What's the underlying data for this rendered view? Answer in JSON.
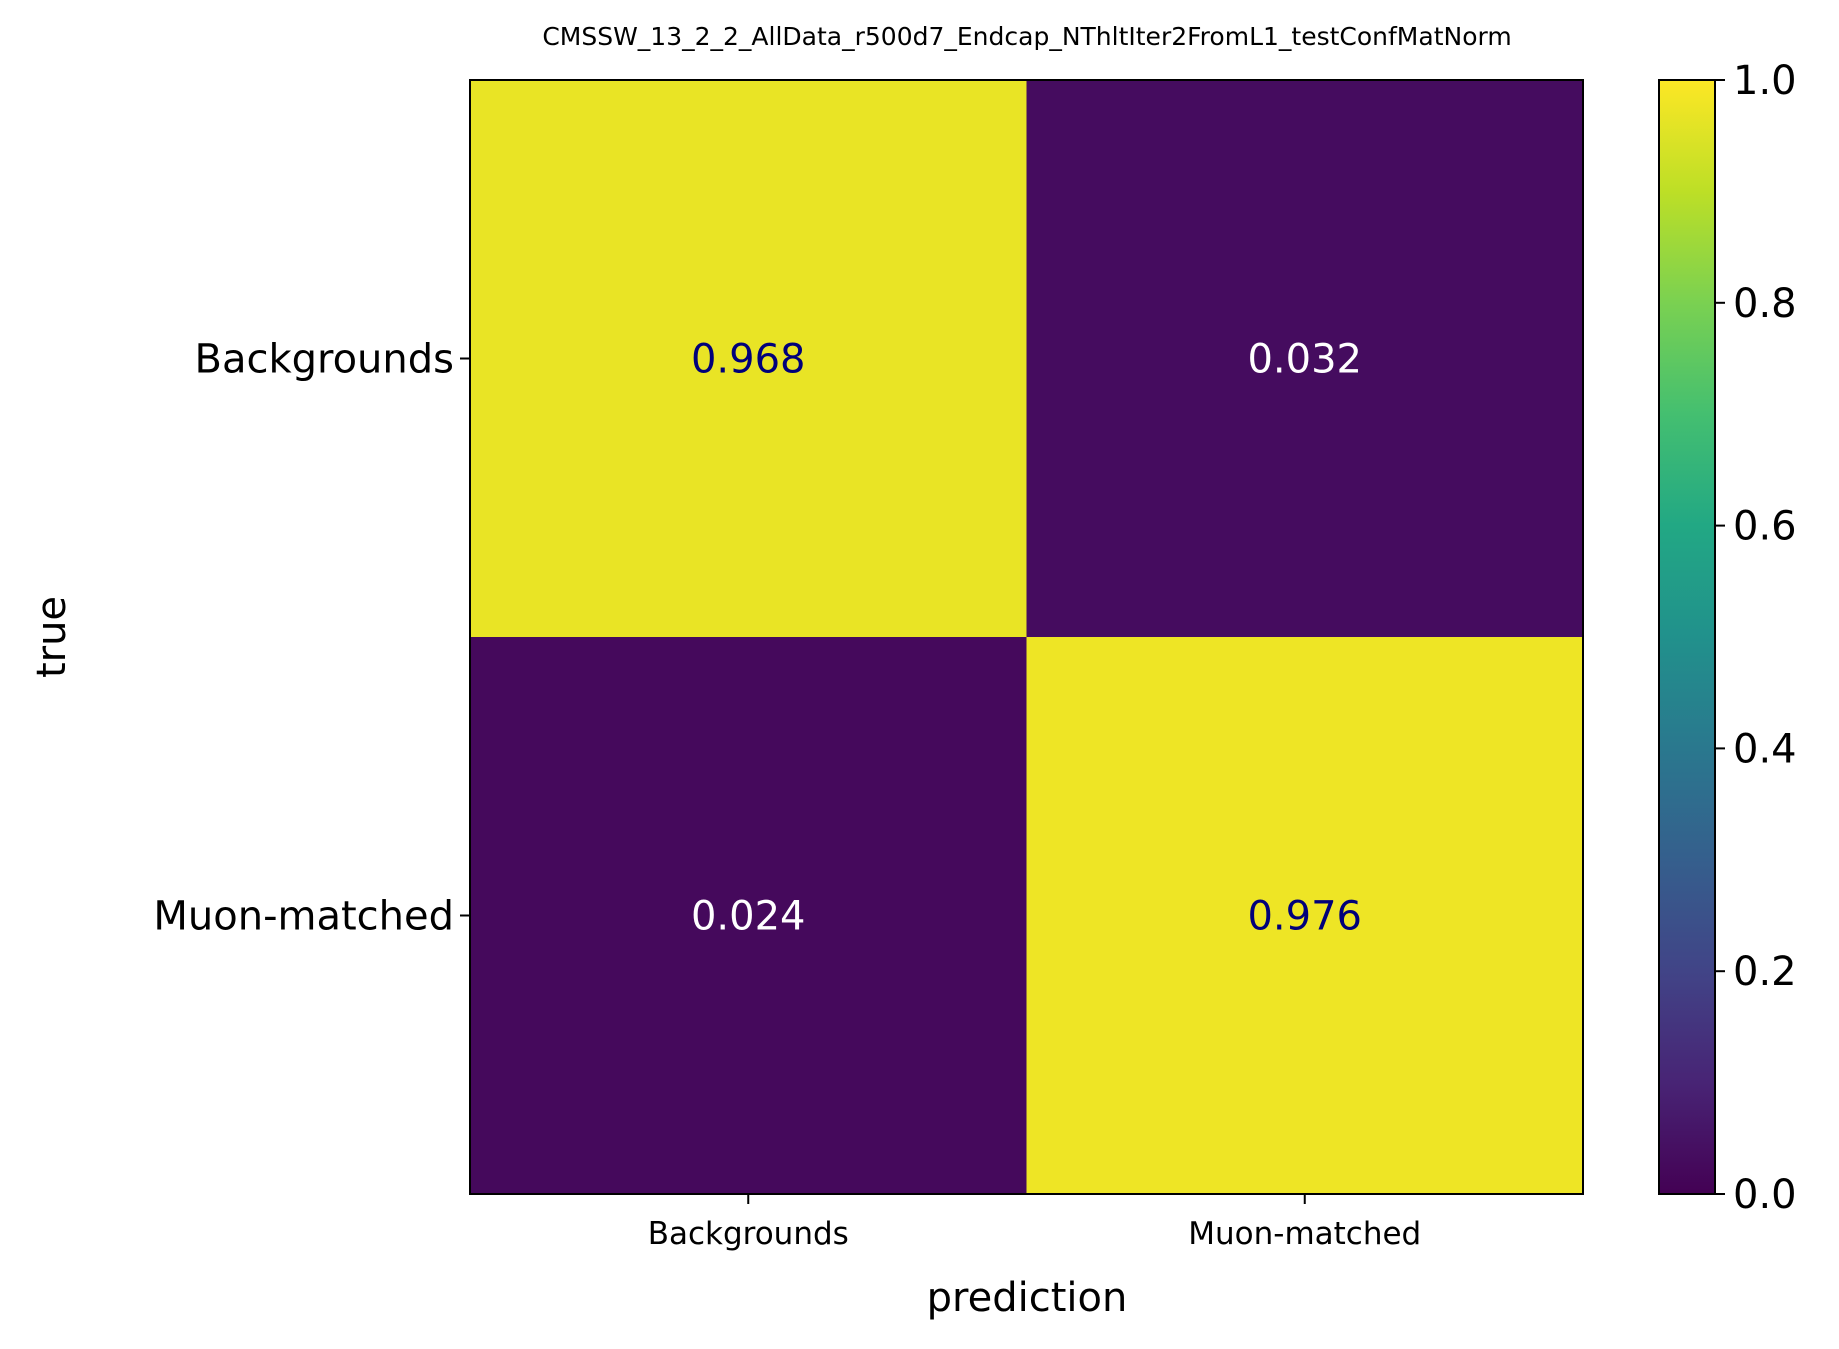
{
  "chart_data": {
    "type": "heatmap",
    "title": "CMSSW_13_2_2_AllData_r500d7_Endcap_NThltIter2FromL1_testConfMatNorm",
    "xlabel": "prediction",
    "ylabel": "true",
    "x_categories": [
      "Backgrounds",
      "Muon-matched"
    ],
    "y_categories": [
      "Backgrounds",
      "Muon-matched"
    ],
    "values": [
      [
        0.968,
        0.032
      ],
      [
        0.024,
        0.976
      ]
    ],
    "value_labels": [
      [
        "0.968",
        "0.032"
      ],
      [
        "0.024",
        "0.976"
      ]
    ],
    "colormap": "viridis",
    "colorbar": {
      "range": [
        0.0,
        1.0
      ],
      "ticks": [
        0.0,
        0.2,
        0.4,
        0.6,
        0.8,
        1.0
      ],
      "tick_labels": [
        "0.0",
        "0.2",
        "0.4",
        "0.6",
        "0.8",
        "1.0"
      ]
    },
    "text_colors": {
      "on_high": "#00007a",
      "on_low": "#ffffff"
    },
    "grid": false
  }
}
